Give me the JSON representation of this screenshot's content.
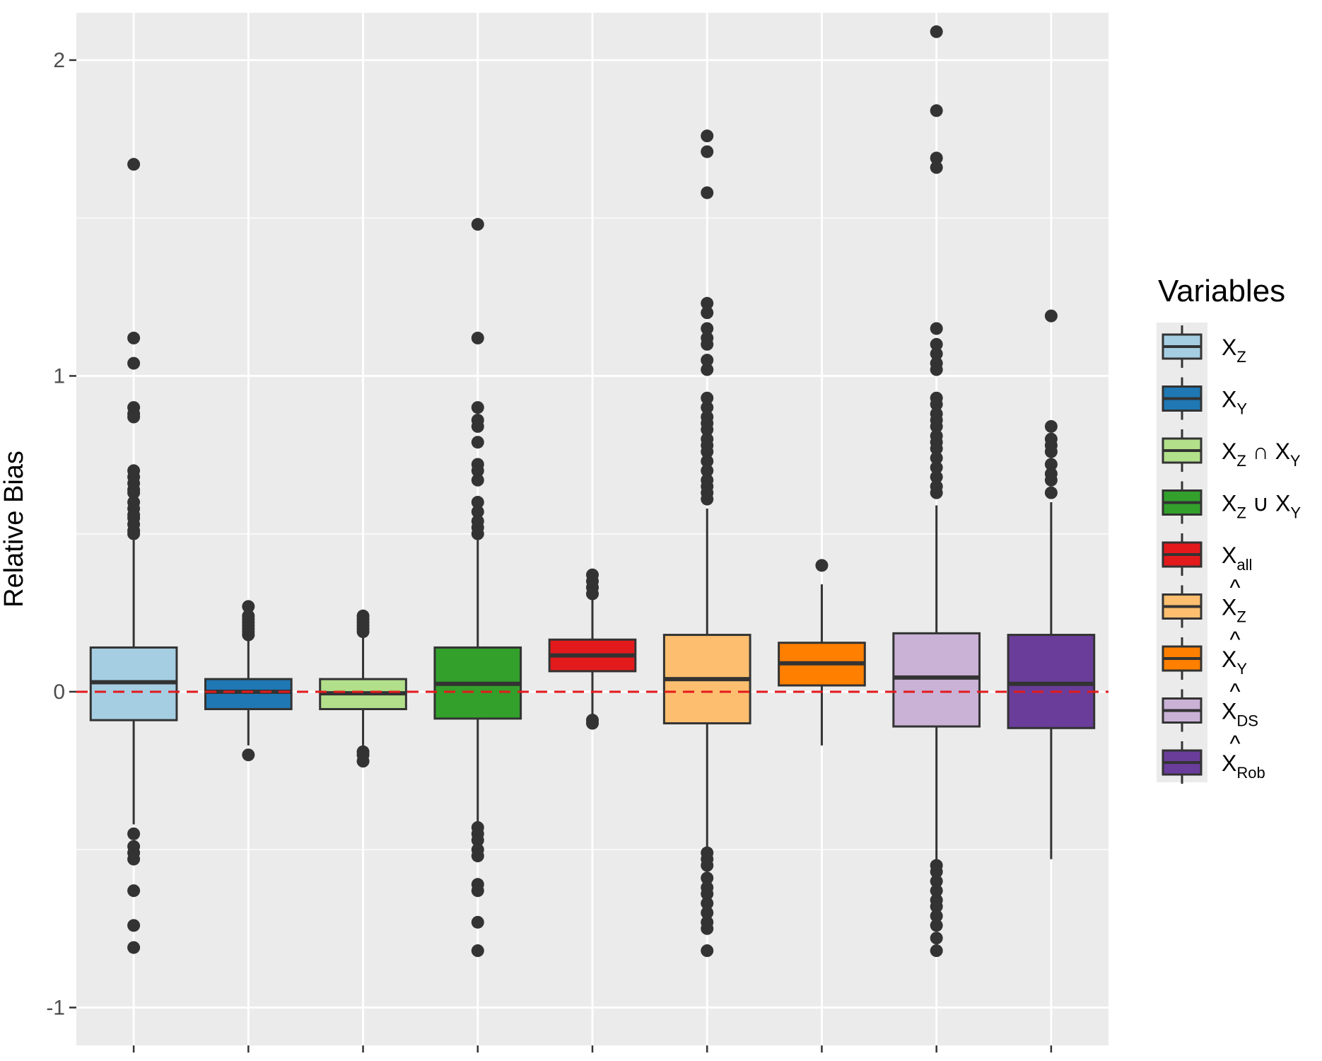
{
  "chart_data": {
    "type": "boxplot",
    "title": "",
    "xlabel": "",
    "ylabel": "Relative Bias",
    "ylim": [
      -1.12,
      2.15
    ],
    "yticks": [
      -1,
      0,
      1,
      2
    ],
    "ytick_labels": [
      "-1",
      "0",
      "1",
      "2"
    ],
    "reference_line": {
      "y": 0,
      "color": "#e41a1c",
      "style": "dashed"
    },
    "legend": {
      "title": "Variables",
      "position": "right",
      "entries": [
        {
          "base": "X",
          "sub": "Z",
          "hat": false
        },
        {
          "base": "X",
          "sub": "Y",
          "hat": false
        },
        {
          "base": "X",
          "sub": "Z",
          "op": "∩",
          "base2": "X",
          "sub2": "Y",
          "hat": false
        },
        {
          "base": "X",
          "sub": "Z",
          "op": "∪",
          "base2": "X",
          "sub2": "Y",
          "hat": false
        },
        {
          "base": "X",
          "sub": "all",
          "hat": false
        },
        {
          "base": "X",
          "sub": "Z",
          "hat": true
        },
        {
          "base": "X",
          "sub": "Y",
          "hat": true
        },
        {
          "base": "X",
          "sub": "DS",
          "hat": true
        },
        {
          "base": "X",
          "sub": "Rob",
          "hat": true
        }
      ]
    },
    "series": [
      {
        "name": "X_Z",
        "color": "#a6cee3",
        "q1": -0.09,
        "median": 0.03,
        "q3": 0.14,
        "whisker_low": -0.42,
        "whisker_high": 0.48,
        "outliers": [
          1.67,
          1.12,
          1.04,
          0.9,
          0.88,
          0.87,
          0.7,
          0.68,
          0.66,
          0.64,
          0.63,
          0.6,
          0.58,
          0.56,
          0.55,
          0.53,
          0.51,
          0.5,
          -0.45,
          -0.49,
          -0.51,
          -0.53,
          -0.63,
          -0.74,
          -0.81
        ]
      },
      {
        "name": "X_Y",
        "color": "#1f78b4",
        "q1": -0.055,
        "median": 0.0,
        "q3": 0.04,
        "whisker_low": -0.17,
        "whisker_high": 0.17,
        "outliers": [
          0.27,
          0.24,
          0.23,
          0.22,
          0.21,
          0.2,
          0.19,
          0.18,
          -0.2
        ]
      },
      {
        "name": "X_Z ∩ X_Y",
        "color": "#b2df8a",
        "q1": -0.055,
        "median": -0.005,
        "q3": 0.04,
        "whisker_low": -0.17,
        "whisker_high": 0.18,
        "outliers": [
          0.24,
          0.23,
          0.22,
          0.21,
          0.2,
          0.19,
          -0.19,
          -0.2,
          -0.22
        ]
      },
      {
        "name": "X_Z ∪ X_Y",
        "color": "#33a02c",
        "q1": -0.085,
        "median": 0.025,
        "q3": 0.14,
        "whisker_low": -0.41,
        "whisker_high": 0.48,
        "outliers": [
          1.48,
          1.12,
          0.9,
          0.86,
          0.84,
          0.79,
          0.72,
          0.7,
          0.67,
          0.6,
          0.57,
          0.54,
          0.52,
          0.5,
          -0.43,
          -0.45,
          -0.47,
          -0.5,
          -0.52,
          -0.61,
          -0.63,
          -0.73,
          -0.82
        ]
      },
      {
        "name": "X_all",
        "color": "#e31a1c",
        "q1": 0.065,
        "median": 0.115,
        "q3": 0.165,
        "whisker_low": -0.08,
        "whisker_high": 0.31,
        "outliers": [
          0.37,
          0.35,
          0.33,
          0.31,
          -0.09,
          -0.1
        ]
      },
      {
        "name": "X̂_Z",
        "color": "#fdbf6f",
        "q1": -0.1,
        "median": 0.04,
        "q3": 0.18,
        "whisker_low": -0.5,
        "whisker_high": 0.58,
        "outliers": [
          1.76,
          1.71,
          1.58,
          1.23,
          1.2,
          1.15,
          1.12,
          1.1,
          1.05,
          1.02,
          0.93,
          0.9,
          0.87,
          0.85,
          0.83,
          0.8,
          0.78,
          0.76,
          0.73,
          0.7,
          0.67,
          0.65,
          0.63,
          0.61,
          -0.51,
          -0.53,
          -0.55,
          -0.59,
          -0.62,
          -0.64,
          -0.67,
          -0.7,
          -0.73,
          -0.75,
          -0.82
        ]
      },
      {
        "name": "X̂_Y",
        "color": "#ff7f00",
        "q1": 0.02,
        "median": 0.09,
        "q3": 0.155,
        "whisker_low": -0.17,
        "whisker_high": 0.34,
        "outliers": [
          0.4
        ]
      },
      {
        "name": "X̂_DS",
        "color": "#cab2d6",
        "q1": -0.11,
        "median": 0.045,
        "q3": 0.185,
        "whisker_low": -0.55,
        "whisker_high": 0.59,
        "outliers": [
          2.09,
          1.84,
          1.69,
          1.66,
          1.15,
          1.1,
          1.07,
          1.04,
          1.02,
          0.93,
          0.91,
          0.88,
          0.86,
          0.84,
          0.81,
          0.79,
          0.77,
          0.74,
          0.71,
          0.68,
          0.65,
          0.63,
          -0.55,
          -0.57,
          -0.6,
          -0.63,
          -0.66,
          -0.68,
          -0.71,
          -0.74,
          -0.78,
          -0.82
        ]
      },
      {
        "name": "X̂_Rob",
        "color": "#6a3d9a",
        "q1": -0.115,
        "median": 0.025,
        "q3": 0.18,
        "whisker_low": -0.53,
        "whisker_high": 0.6,
        "outliers": [
          1.19,
          0.84,
          0.8,
          0.78,
          0.76,
          0.72,
          0.69,
          0.67,
          0.63
        ]
      }
    ]
  }
}
